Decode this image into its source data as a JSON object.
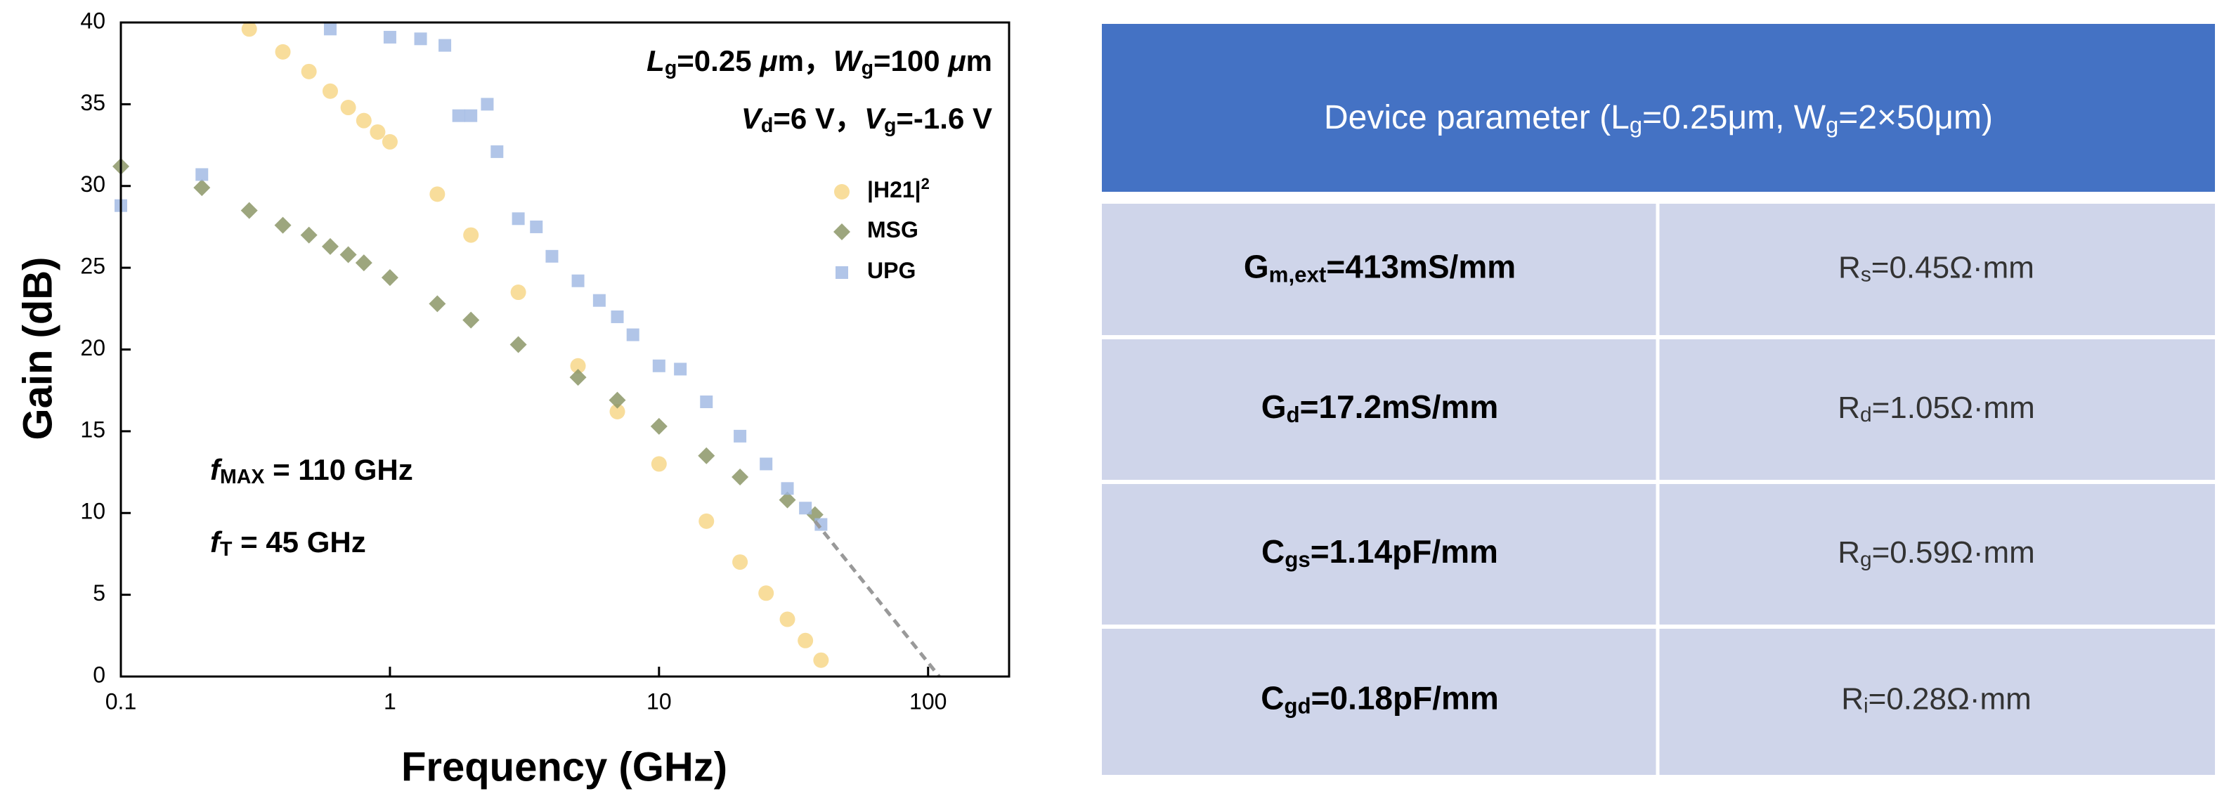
{
  "chart_data": {
    "type": "scatter",
    "x_label": "Frequency (GHz)",
    "y_label": "Gain (dB)",
    "x_scale": "log",
    "xlim": [
      0.1,
      200
    ],
    "xticks": [
      0.1,
      1,
      10,
      100
    ],
    "ylim": [
      0,
      40
    ],
    "yticks": [
      0,
      5,
      10,
      15,
      20,
      25,
      30,
      35,
      40
    ],
    "series": [
      {
        "name": "|H21|",
        "name_sup": "2",
        "marker": "circle",
        "color": "#f5d27a",
        "x": [
          0.3,
          0.4,
          0.5,
          0.6,
          0.7,
          0.8,
          0.9,
          1,
          1.5,
          2,
          3,
          5,
          7,
          10,
          15,
          20,
          25,
          30,
          35,
          40
        ],
        "values": [
          39.6,
          38.2,
          37,
          35.8,
          34.8,
          34,
          33.3,
          32.7,
          29.5,
          27,
          23.5,
          19,
          16.2,
          13,
          9.5,
          7,
          5.1,
          3.5,
          2.2,
          1.0
        ]
      },
      {
        "name": "MSG",
        "marker": "diamond",
        "color": "#8c9767",
        "x": [
          0.1,
          0.2,
          0.3,
          0.4,
          0.5,
          0.6,
          0.7,
          0.8,
          1,
          1.5,
          2,
          3,
          5,
          7,
          10,
          15,
          20,
          30,
          38
        ],
        "values": [
          31.2,
          29.9,
          28.5,
          27.6,
          27,
          26.3,
          25.8,
          25.3,
          24.4,
          22.8,
          21.8,
          20.3,
          18.3,
          16.9,
          15.3,
          13.5,
          12.2,
          10.8,
          9.9
        ]
      },
      {
        "name": "UPG",
        "marker": "square",
        "color": "#9db6e2",
        "x": [
          0.1,
          0.2,
          0.6,
          1,
          1.3,
          1.6,
          1.8,
          2,
          2.3,
          2.5,
          3,
          3.5,
          4,
          5,
          6,
          7,
          8,
          10,
          12,
          15,
          20,
          25,
          30,
          35,
          40
        ],
        "values": [
          28.8,
          30.7,
          39.6,
          39.1,
          39,
          38.6,
          34.3,
          34.3,
          35,
          32.1,
          28,
          27.5,
          25.7,
          24.2,
          23,
          22,
          20.9,
          19,
          18.8,
          16.8,
          14.7,
          13,
          11.5,
          10.3,
          9.3
        ]
      }
    ],
    "extrapolation": {
      "color": "#999999",
      "x": [
        38,
        110
      ],
      "values": [
        9.5,
        0
      ]
    },
    "annotations": [
      [
        {
          "text": "L",
          "style": "italic"
        },
        {
          "text": "g",
          "style": "sub"
        },
        {
          "text": "=0.25 "
        },
        {
          "text": "μ",
          "style": "italic"
        },
        {
          "text": "m，"
        },
        {
          "text": "W",
          "style": "italic"
        },
        {
          "text": "g",
          "style": "sub"
        },
        {
          "text": "=100 "
        },
        {
          "text": "μ",
          "style": "italic"
        },
        {
          "text": "m"
        }
      ],
      [
        {
          "text": "V",
          "style": "italic"
        },
        {
          "text": "d",
          "style": "sub"
        },
        {
          "text": "=6 V，"
        },
        {
          "text": "V",
          "style": "italic"
        },
        {
          "text": "g",
          "style": "sub"
        },
        {
          "text": "=-1.6 V"
        }
      ],
      [
        {
          "text": "f",
          "style": "italic"
        },
        {
          "text": "MAX",
          "style": "sub"
        },
        {
          "text": " = 110 GHz"
        }
      ],
      [
        {
          "text": "f",
          "style": "italic"
        },
        {
          "text": "T",
          "style": "sub"
        },
        {
          "text": " = 45 GHz"
        }
      ]
    ]
  },
  "table": {
    "header": [
      {
        "text": "Device parameter (L"
      },
      {
        "text": "g",
        "style": "sub"
      },
      {
        "text": "=0.25μm, W"
      },
      {
        "text": "g",
        "style": "sub"
      },
      {
        "text": "=2×50μm)"
      }
    ],
    "rows": [
      [
        [
          {
            "text": "G"
          },
          {
            "text": "m,ext",
            "style": "sub"
          },
          {
            "text": "=413mS/mm"
          }
        ],
        [
          {
            "text": "R"
          },
          {
            "text": "s",
            "style": "sub"
          },
          {
            "text": "=0.45Ω·mm"
          }
        ]
      ],
      [
        [
          {
            "text": "G"
          },
          {
            "text": "d",
            "style": "sub"
          },
          {
            "text": "=17.2mS/mm"
          }
        ],
        [
          {
            "text": "R"
          },
          {
            "text": "d",
            "style": "sub"
          },
          {
            "text": "=1.05Ω·mm"
          }
        ]
      ],
      [
        [
          {
            "text": "C"
          },
          {
            "text": "gs",
            "style": "sub"
          },
          {
            "text": "=1.14pF/mm"
          }
        ],
        [
          {
            "text": "R"
          },
          {
            "text": "g",
            "style": "sub"
          },
          {
            "text": "=0.59Ω·mm"
          }
        ]
      ],
      [
        [
          {
            "text": "C"
          },
          {
            "text": "gd",
            "style": "sub"
          },
          {
            "text": "=0.18pF/mm"
          }
        ],
        [
          {
            "text": "R"
          },
          {
            "text": "i",
            "style": "sub"
          },
          {
            "text": "=0.28Ω·mm"
          }
        ]
      ]
    ]
  }
}
